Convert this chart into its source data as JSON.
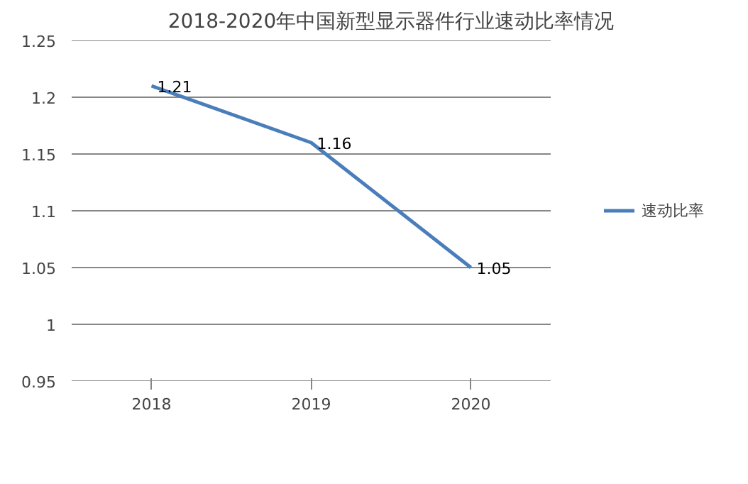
{
  "chart_data": {
    "type": "line",
    "title": "2018-2020年中国新型显示器件行业速动比率情况",
    "categories": [
      "2018",
      "2019",
      "2020"
    ],
    "series": [
      {
        "name": "速动比率",
        "color": "#4a7ebb",
        "values": [
          1.21,
          1.16,
          1.05
        ]
      }
    ],
    "ylim": [
      0.95,
      1.25
    ],
    "yticks": [
      0.95,
      1,
      1.05,
      1.1,
      1.15,
      1.2,
      1.25
    ],
    "grid": "y",
    "legend": "right",
    "data_labels": true,
    "marker": "none",
    "line_style": "solid"
  }
}
